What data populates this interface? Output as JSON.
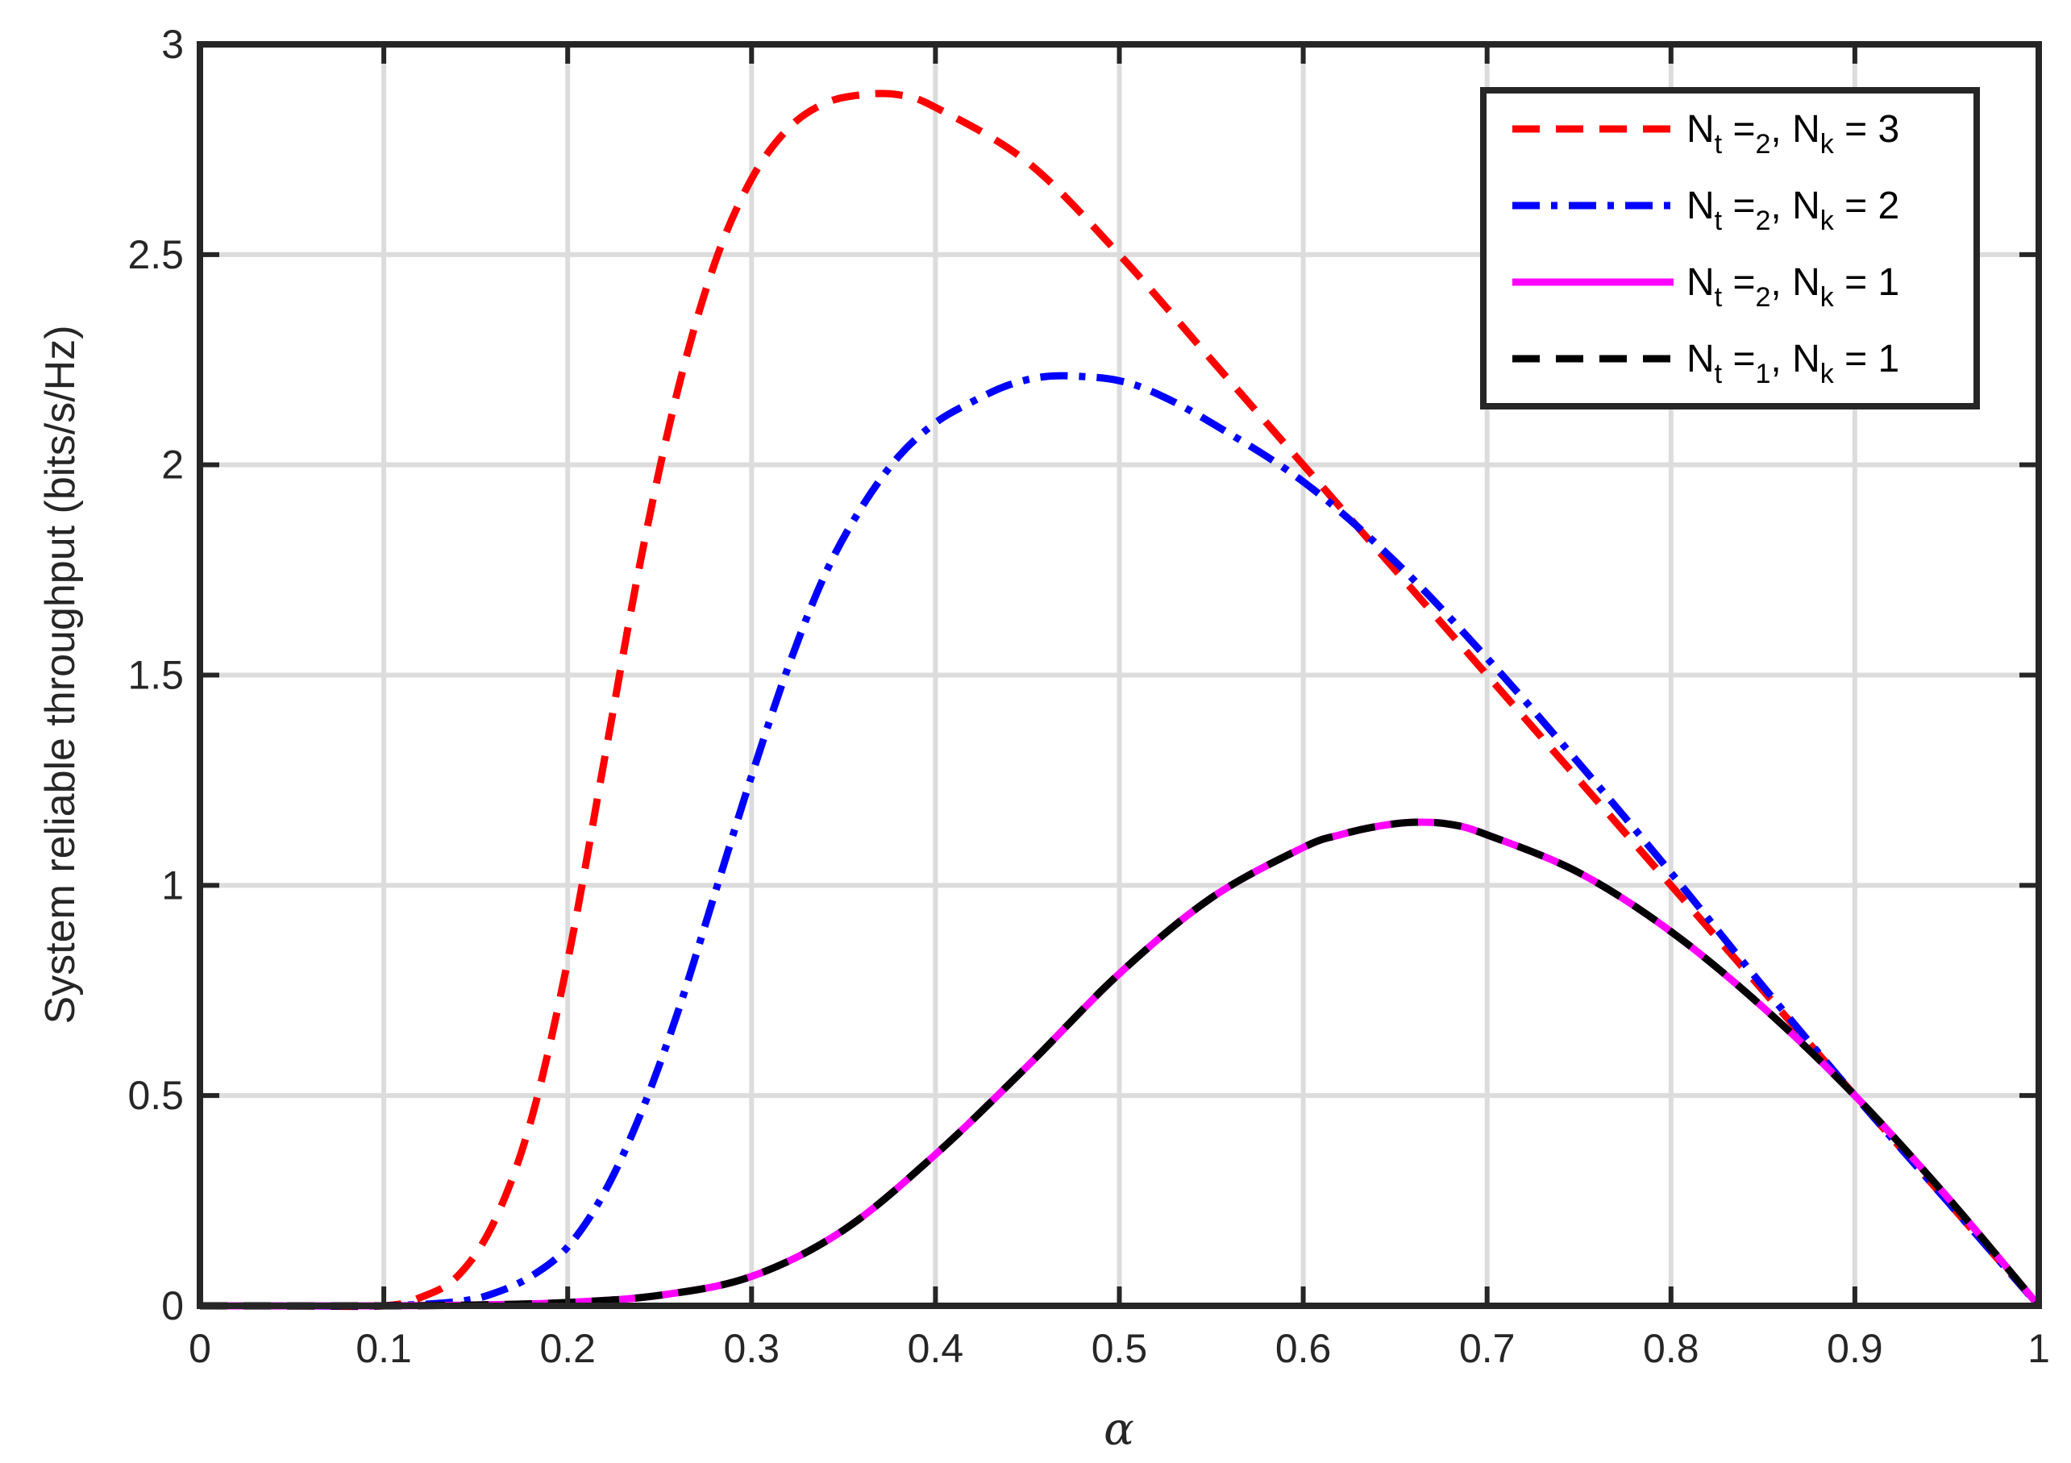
{
  "chart_data": {
    "type": "line",
    "title": "",
    "xlabel": "α",
    "ylabel": "System reliable throughput (bits/s/Hz)",
    "xlim": [
      0,
      1
    ],
    "ylim": [
      0,
      3
    ],
    "x_ticks": [
      "0",
      "0.1",
      "0.2",
      "0.3",
      "0.4",
      "0.5",
      "0.6",
      "0.7",
      "0.8",
      "0.9",
      "1"
    ],
    "y_ticks": [
      "0",
      "0.5",
      "1",
      "1.5",
      "2",
      "2.5",
      "3"
    ],
    "grid": true,
    "legend_position": "top-right",
    "series": [
      {
        "legend": {
          "n1": "N",
          "s1": "t",
          "m1": " =",
          "s2": "2",
          "n2": ", N",
          "s3": "k",
          "e": " = 3"
        },
        "color": "#ff0000",
        "style": "dashed",
        "x": [
          0,
          0.05,
          0.1,
          0.12,
          0.14,
          0.16,
          0.18,
          0.2,
          0.22,
          0.24,
          0.26,
          0.28,
          0.3,
          0.32,
          0.34,
          0.36,
          0.38,
          0.4,
          0.45,
          0.5,
          0.55,
          0.6,
          0.65,
          0.7,
          0.75,
          0.8,
          0.85,
          0.9,
          0.95,
          1.0
        ],
        "y": [
          0,
          0,
          0,
          0.02,
          0.07,
          0.2,
          0.44,
          0.82,
          1.3,
          1.78,
          2.18,
          2.48,
          2.68,
          2.8,
          2.86,
          2.88,
          2.88,
          2.85,
          2.72,
          2.5,
          2.25,
          2.0,
          1.75,
          1.5,
          1.25,
          1.0,
          0.75,
          0.5,
          0.25,
          0.0
        ]
      },
      {
        "legend": {
          "n1": "N",
          "s1": "t",
          "m1": " =",
          "s2": "2",
          "n2": ", N",
          "s3": "k",
          "e": " = 2"
        },
        "color": "#0000ff",
        "style": "dashdot",
        "x": [
          0,
          0.05,
          0.1,
          0.14,
          0.16,
          0.18,
          0.2,
          0.22,
          0.24,
          0.26,
          0.28,
          0.3,
          0.32,
          0.34,
          0.36,
          0.38,
          0.4,
          0.42,
          0.44,
          0.46,
          0.48,
          0.5,
          0.52,
          0.55,
          0.6,
          0.65,
          0.7,
          0.75,
          0.8,
          0.85,
          0.9,
          0.95,
          1.0
        ],
        "y": [
          0,
          0,
          0,
          0.01,
          0.03,
          0.07,
          0.14,
          0.27,
          0.46,
          0.7,
          0.98,
          1.26,
          1.52,
          1.74,
          1.9,
          2.02,
          2.1,
          2.15,
          2.19,
          2.21,
          2.21,
          2.2,
          2.17,
          2.1,
          1.96,
          1.77,
          1.54,
          1.29,
          1.03,
          0.76,
          0.5,
          0.25,
          0.0
        ]
      },
      {
        "legend": {
          "n1": "N",
          "s1": "t",
          "m1": " =",
          "s2": "2",
          "n2": ", N",
          "s3": "k",
          "e": " = 1"
        },
        "color": "#ff00ff",
        "style": "solid",
        "x": [
          0,
          0.1,
          0.15,
          0.2,
          0.25,
          0.3,
          0.35,
          0.4,
          0.45,
          0.5,
          0.55,
          0.6,
          0.62,
          0.64,
          0.66,
          0.68,
          0.7,
          0.75,
          0.8,
          0.85,
          0.9,
          0.95,
          1.0
        ],
        "y": [
          0,
          0,
          0.002,
          0.008,
          0.025,
          0.07,
          0.18,
          0.36,
          0.57,
          0.79,
          0.97,
          1.09,
          1.12,
          1.14,
          1.15,
          1.145,
          1.12,
          1.03,
          0.89,
          0.71,
          0.5,
          0.26,
          0.0
        ]
      },
      {
        "legend": {
          "n1": "N",
          "s1": "t",
          "m1": " =",
          "s2": "1",
          "n2": ", N",
          "s3": "k",
          "e": " = 1"
        },
        "color": "#000000",
        "style": "dashed",
        "x": [
          0,
          0.1,
          0.15,
          0.2,
          0.25,
          0.3,
          0.35,
          0.4,
          0.45,
          0.5,
          0.55,
          0.6,
          0.62,
          0.64,
          0.66,
          0.68,
          0.7,
          0.75,
          0.8,
          0.85,
          0.9,
          0.95,
          1.0
        ],
        "y": [
          0,
          0,
          0.002,
          0.008,
          0.025,
          0.07,
          0.18,
          0.36,
          0.57,
          0.79,
          0.97,
          1.09,
          1.12,
          1.14,
          1.15,
          1.145,
          1.12,
          1.03,
          0.89,
          0.71,
          0.5,
          0.26,
          0.0
        ]
      }
    ]
  }
}
